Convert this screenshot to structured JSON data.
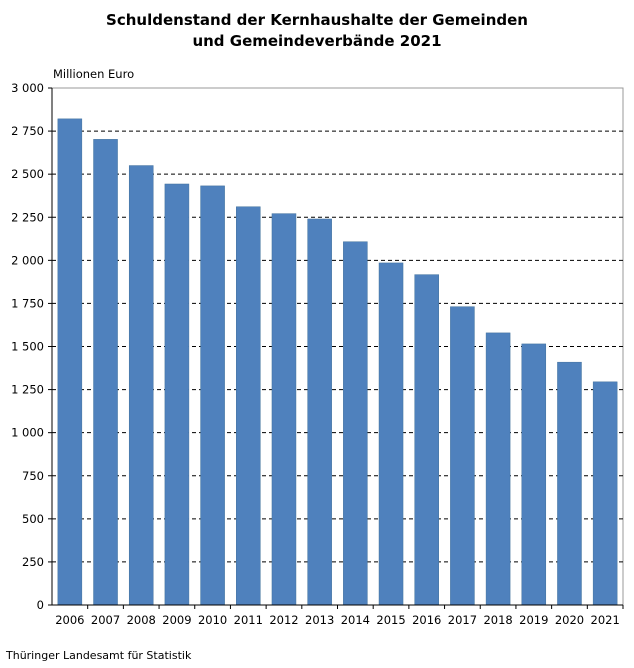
{
  "chart_data": {
    "type": "bar",
    "title_line1": "Schuldenstand der Kernhaushalte der Gemeinden",
    "title_line2": "und Gemeindeverbände 2021",
    "ylabel": "Millionen Euro",
    "xlabel": "",
    "ylim": [
      0,
      3000
    ],
    "yticks": [
      0,
      250,
      500,
      750,
      1000,
      1250,
      1500,
      1750,
      2000,
      2250,
      2500,
      2750,
      3000
    ],
    "ytick_labels": [
      "0",
      "250",
      "500",
      "750",
      "1 000",
      "1 250",
      "1 500",
      "1 750",
      "2 000",
      "2 250",
      "2 500",
      "2 750",
      "3 000"
    ],
    "categories": [
      "2006",
      "2007",
      "2008",
      "2009",
      "2010",
      "2011",
      "2012",
      "2013",
      "2014",
      "2015",
      "2016",
      "2017",
      "2018",
      "2019",
      "2020",
      "2021"
    ],
    "values": [
      2821,
      2702,
      2550,
      2443,
      2432,
      2311,
      2271,
      2240,
      2108,
      1985,
      1917,
      1731,
      1579,
      1515,
      1409,
      1295
    ],
    "grid": "horizontal dashed",
    "bar_color": "#4f81bd"
  },
  "source": "Thüringer Landesamt für Statistik"
}
